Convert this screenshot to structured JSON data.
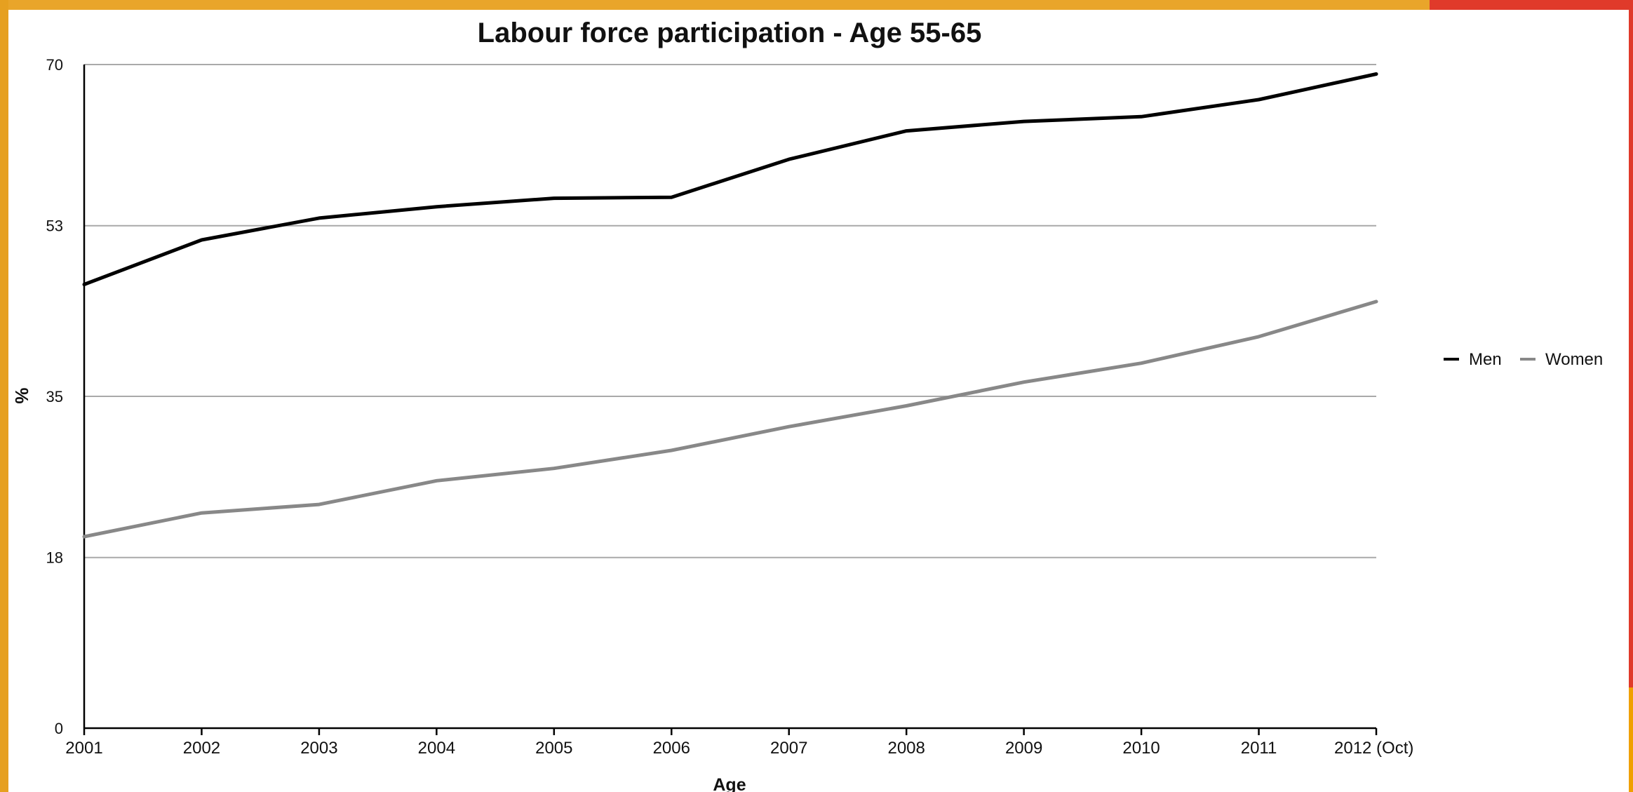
{
  "chart_data": {
    "type": "line",
    "title": "Labour force participation - Age 55-65",
    "xlabel": "Age",
    "ylabel": "%",
    "categories": [
      "2001",
      "2002",
      "2003",
      "2004",
      "2005",
      "2006",
      "2007",
      "2008",
      "2009",
      "2010",
      "2011",
      "2012 (Oct)"
    ],
    "yticks": [
      0,
      18,
      35,
      53,
      70
    ],
    "ylim": [
      0,
      70
    ],
    "grid": true,
    "legend": "right",
    "series": [
      {
        "name": "Men",
        "color": "#000000",
        "values": [
          46.8,
          51.5,
          53.8,
          55.0,
          55.9,
          56.0,
          60.0,
          63.0,
          64.0,
          64.5,
          66.3,
          69.0
        ]
      },
      {
        "name": "Women",
        "color": "#888888",
        "values": [
          20.2,
          22.7,
          23.6,
          26.1,
          27.4,
          29.3,
          31.8,
          34.0,
          36.5,
          38.5,
          41.3,
          45.0
        ]
      }
    ]
  }
}
